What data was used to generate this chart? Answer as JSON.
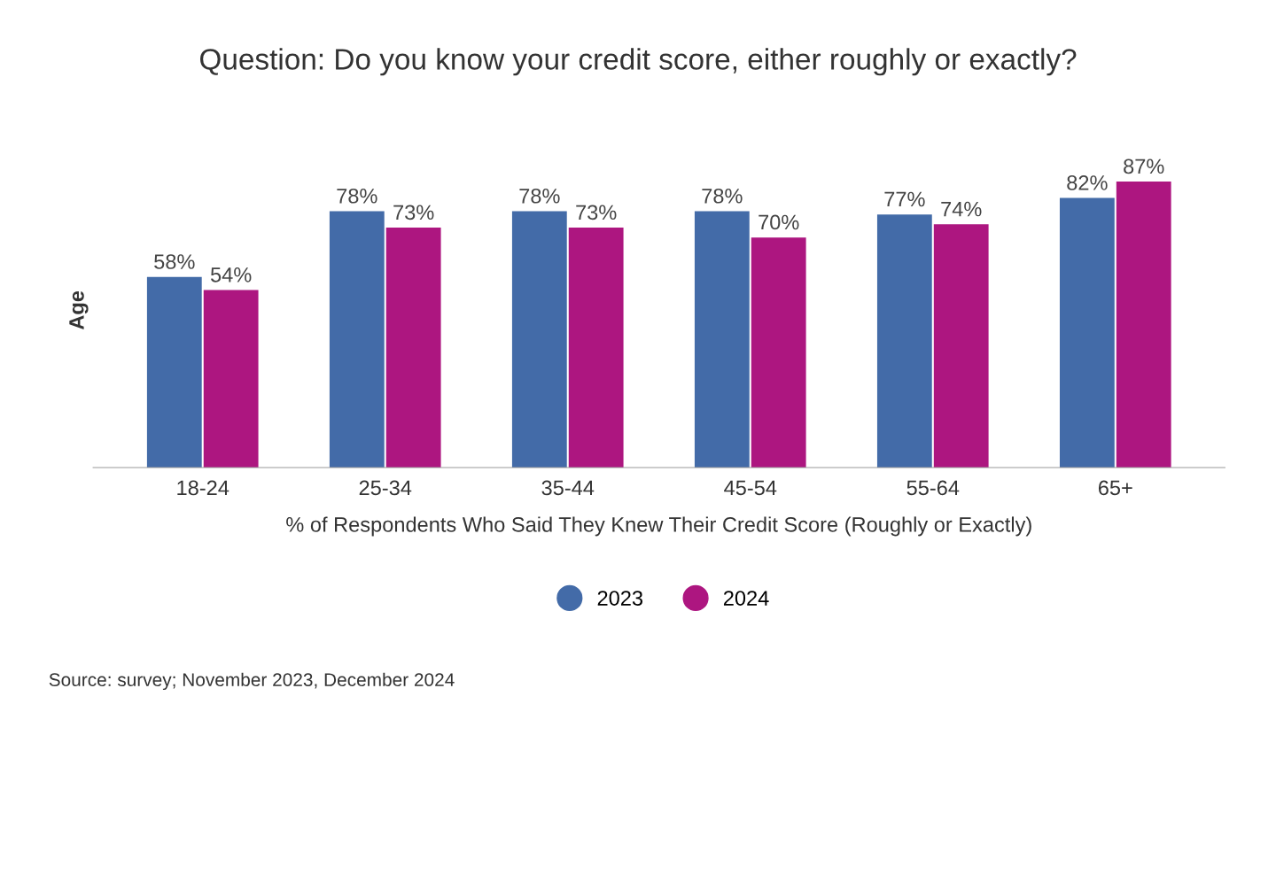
{
  "chart_data": {
    "type": "bar",
    "title": "Question: Do you know your credit score, either roughly or exactly?",
    "xlabel": "% of Respondents Who Said They Knew Their Credit Score (Roughly or Exactly)",
    "ylabel": "Age",
    "categories": [
      "18-24",
      "25-34",
      "35-44",
      "45-54",
      "55-64",
      "65+"
    ],
    "series": [
      {
        "name": "2023",
        "color": "#436ba8",
        "values": [
          58,
          78,
          78,
          78,
          77,
          82
        ],
        "value_labels": [
          "58%",
          "78%",
          "78%",
          "78%",
          "77%",
          "82%"
        ]
      },
      {
        "name": "2024",
        "color": "#ad1680",
        "values": [
          54,
          73,
          73,
          70,
          74,
          87
        ],
        "value_labels": [
          "54%",
          "73%",
          "73%",
          "70%",
          "74%",
          "87%"
        ]
      }
    ],
    "legend": "bottom",
    "grid": false,
    "annotations": [
      "Source: survey; November 2023, December 2024"
    ]
  }
}
